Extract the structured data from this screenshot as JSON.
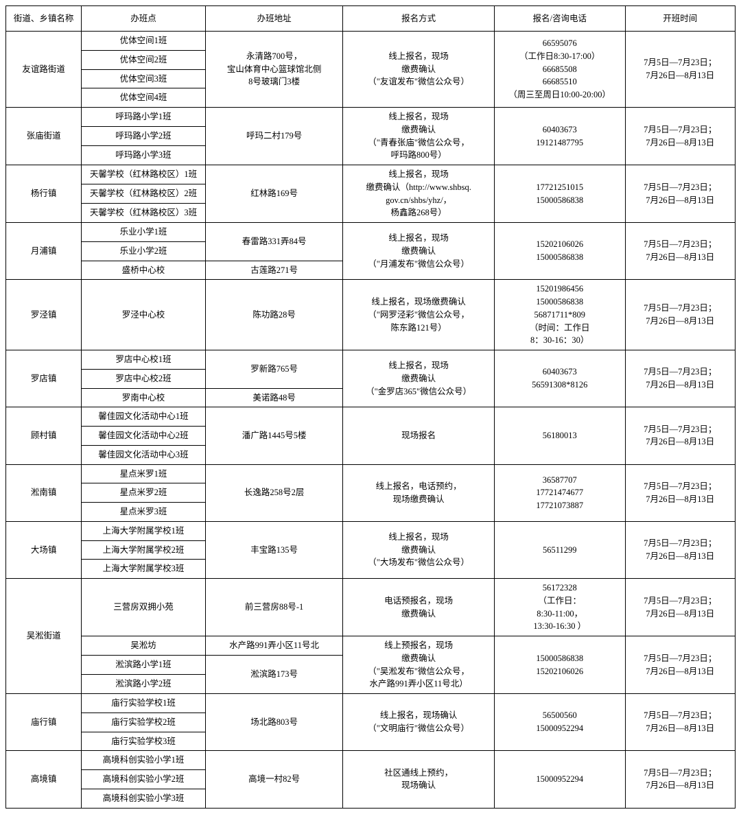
{
  "columns": [
    "街道、乡镇名称",
    "办班点",
    "办班地址",
    "报名方式",
    "报名/咨询电话",
    "开班时间"
  ],
  "common_time": "7月5日—7月23日；\n7月26日—8月13日",
  "districts": [
    {
      "name": "友谊路街道",
      "groups": [
        {
          "classes": [
            "优体空间1班",
            "优体空间2班",
            "优体空间3班",
            "优体空间4班"
          ],
          "address": "永清路700号，\n宝山体育中心篮球馆北侧\n8号玻璃门3楼",
          "method": "线上报名，现场\n缴费确认\n（\"友谊发布\"微信公众号）",
          "phone": "66595076\n（工作日8:30-17:00）\n66685508\n66685510\n（周三至周日10:00-20:00）"
        }
      ]
    },
    {
      "name": "张庙街道",
      "groups": [
        {
          "classes": [
            "呼玛路小学1班",
            "呼玛路小学2班",
            "呼玛路小学3班"
          ],
          "address": "呼玛二村179号",
          "method": "线上报名，现场\n缴费确认\n（\"青春张庙\"微信公众号，\n呼玛路800号）",
          "phone": "60403673\n19121487795"
        }
      ]
    },
    {
      "name": "杨行镇",
      "groups": [
        {
          "classes": [
            "天馨学校（红林路校区）1班",
            "天馨学校（红林路校区）2班",
            "天馨学校（红林路校区）3班"
          ],
          "address": "红林路169号",
          "method": "线上报名，现场\n缴费确认（http://www.shbsq.\ngov.cn/shbs/yhz/，\n杨鑫路268号）",
          "phone": "17721251015\n15000586838"
        }
      ]
    },
    {
      "name": "月浦镇",
      "groups": [
        {
          "classes": [
            "乐业小学1班",
            "乐业小学2班"
          ],
          "address": "春雷路331弄84号",
          "method": "线上报名，现场\n缴费确认\n（\"月浦发布\"微信公众号）",
          "method_span": 3,
          "phone": "15202106026\n15000586838",
          "phone_span": 3
        },
        {
          "classes": [
            "盛桥中心校"
          ],
          "address": "古莲路271号"
        }
      ]
    },
    {
      "name": "罗泾镇",
      "groups": [
        {
          "classes": [
            "罗泾中心校"
          ],
          "address": "陈功路28号",
          "method": "线上报名，现场缴费确认\n（\"网罗泾彩\"微信公众号，\n陈东路121号）",
          "phone": "15201986456\n15000586838\n56871711*809\n（时间：工作日\n8：30-16：30）"
        }
      ]
    },
    {
      "name": "罗店镇",
      "groups": [
        {
          "classes": [
            "罗店中心校1班",
            "罗店中心校2班"
          ],
          "address": "罗新路765号",
          "method": "线上报名，现场\n缴费确认\n（\"金罗店365\"微信公众号）",
          "method_span": 3,
          "phone": "60403673\n56591308*8126",
          "phone_span": 3
        },
        {
          "classes": [
            "罗南中心校"
          ],
          "address": "美诺路48号"
        }
      ]
    },
    {
      "name": "顾村镇",
      "groups": [
        {
          "classes": [
            "馨佳园文化活动中心1班",
            "馨佳园文化活动中心2班",
            "馨佳园文化活动中心3班"
          ],
          "address": "潘广路1445号5楼",
          "method": "现场报名",
          "phone": "56180013"
        }
      ]
    },
    {
      "name": "淞南镇",
      "groups": [
        {
          "classes": [
            "星点米罗1班",
            "星点米罗2班",
            "星点米罗3班"
          ],
          "address": "长逸路258号2层",
          "method": "线上报名，电话预约，\n现场缴费确认",
          "phone": "36587707\n17721474677\n17721073887"
        }
      ]
    },
    {
      "name": "大场镇",
      "groups": [
        {
          "classes": [
            "上海大学附属学校1班",
            "上海大学附属学校2班",
            "上海大学附属学校3班"
          ],
          "address": "丰宝路135号",
          "method": "线上报名，现场\n缴费确认\n（\"大场发布\"微信公众号）",
          "phone": "56511299"
        }
      ]
    },
    {
      "name": "吴淞街道",
      "groups": [
        {
          "classes": [
            "三营房双拥小苑"
          ],
          "address": "前三营房88号-1",
          "method": "电话预报名，现场\n缴费确认",
          "phone": "56172328\n（工作日：\n8:30-11:00，\n13:30-16:30 ）",
          "time_span": 1
        },
        {
          "classes": [
            "吴淞坊"
          ],
          "address": "水产路991弄小区11号北",
          "method": "线上预报名，现场\n缴费确认\n（\"吴淞发布\"微信公众号，\n水产路991弄小区11号北）",
          "method_span": 3,
          "phone": "15000586838\n15202106026",
          "phone_span": 3,
          "time_span": 3,
          "time_new": true
        },
        {
          "classes": [
            "淞滨路小学1班",
            "淞滨路小学2班"
          ],
          "address": "淞滨路173号"
        }
      ]
    },
    {
      "name": "庙行镇",
      "groups": [
        {
          "classes": [
            "庙行实验学校1班",
            "庙行实验学校2班",
            "庙行实验学校3班"
          ],
          "address": "场北路803号",
          "method": "线上报名，现场确认\n（\"文明庙行\"微信公众号）",
          "phone": "56500560\n15000952294"
        }
      ]
    },
    {
      "name": "高境镇",
      "groups": [
        {
          "classes": [
            "高境科创实验小学1班",
            "高境科创实验小学2班",
            "高境科创实验小学3班"
          ],
          "address": "高境一村82号",
          "method": "社区通线上预约，\n现场确认",
          "phone": "15000952294"
        }
      ]
    }
  ]
}
